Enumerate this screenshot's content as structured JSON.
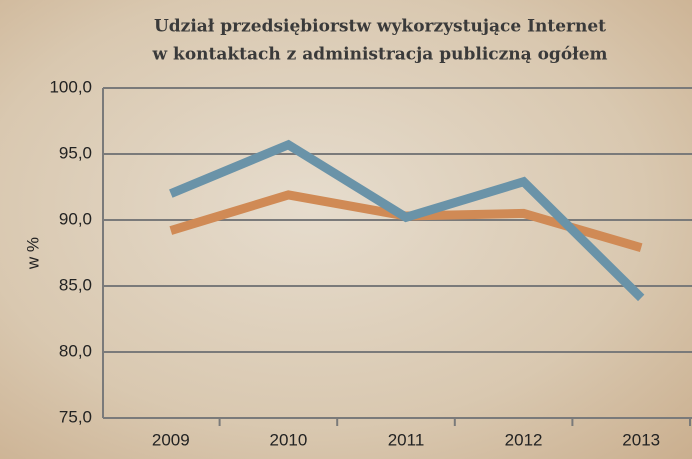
{
  "chart_data": {
    "type": "line",
    "title": [
      "Udział przedsiębiorstw wykorzystujące Internet",
      "w kontaktach z administracja publiczną ogółem"
    ],
    "y_label": "w %",
    "categories": [
      "2009",
      "2010",
      "2011",
      "2012",
      "2013"
    ],
    "series": [
      {
        "color": "#d08a55",
        "values": [
          89.2,
          91.9,
          90.3,
          90.5,
          87.9
        ]
      },
      {
        "color": "#6a93a8",
        "values": [
          92.0,
          95.7,
          90.2,
          92.9,
          84.1
        ]
      }
    ],
    "ylim": [
      75,
      100
    ],
    "yticks": [
      {
        "value": 75,
        "label": "75,0"
      },
      {
        "value": 80,
        "label": "80,0"
      },
      {
        "value": 85,
        "label": "85,0"
      },
      {
        "value": 90,
        "label": "90,0"
      },
      {
        "value": 95,
        "label": "95,0"
      },
      {
        "value": 100,
        "label": "100,0"
      }
    ],
    "grid": true
  }
}
